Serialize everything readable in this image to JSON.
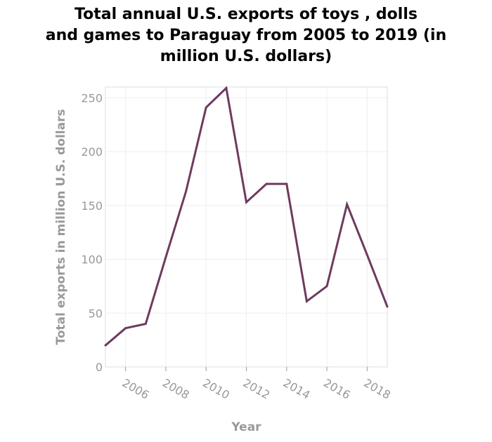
{
  "chart_data": {
    "type": "line",
    "title_lines": [
      "Total annual U.S. exports of toys , dolls",
      "and games to Paraguay from 2005 to 2019 (in",
      "million U.S. dollars)"
    ],
    "xlabel": "Year",
    "ylabel": "Total exports in million U.S. dollars",
    "xlim": [
      2005,
      2019
    ],
    "ylim": [
      0,
      260
    ],
    "x_ticks": [
      2006,
      2008,
      2010,
      2012,
      2014,
      2016,
      2018
    ],
    "y_ticks": [
      0,
      50,
      100,
      150,
      200,
      250
    ],
    "grid": true,
    "line_color": "#6e3a5e",
    "series": [
      {
        "x": [
          2005,
          2006,
          2007,
          2008,
          2009,
          2010,
          2011,
          2012,
          2013,
          2014,
          2015,
          2016,
          2017,
          2018,
          2019
        ],
        "values": [
          20,
          36,
          40,
          102,
          163,
          241,
          259,
          153,
          170,
          170,
          61,
          75,
          151,
          104,
          56
        ]
      }
    ]
  }
}
